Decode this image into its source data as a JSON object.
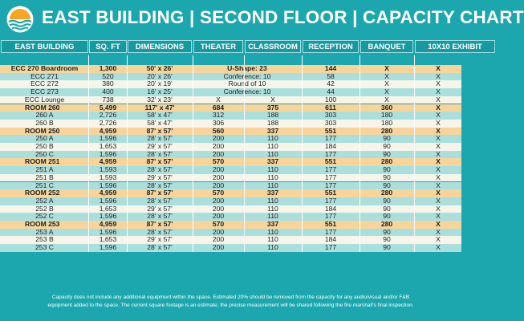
{
  "header": {
    "title": "EAST BUILDING | SECOND FLOOR | CAPACITY CHART"
  },
  "colors": {
    "teal": "#1ba7ad",
    "header_cell": "#1899a0",
    "row_teal": "#a9dfdc",
    "row_white": "#f7f5ea",
    "row_orange": "#f8d49b"
  },
  "table": {
    "columns": [
      "EAST BUILDING",
      "SQ. FT",
      "DIMENSIONS",
      "THEATER",
      "CLASSROOM",
      "RECEPTION",
      "BANQUET",
      "10X10 EXHIBIT"
    ],
    "rows": [
      {
        "style": "orange",
        "bold": true,
        "cells": [
          "ECC 270 Boardroom",
          "1,300",
          "50' x 26'",
          "U-Shape: 23",
          "",
          "144",
          "X",
          "X"
        ],
        "merge": true
      },
      {
        "style": "teal",
        "bold": false,
        "cells": [
          "ECC 271",
          "520",
          "20' x 26'",
          "Conference: 10",
          "",
          "58",
          "X",
          "X"
        ],
        "merge": true
      },
      {
        "style": "white",
        "bold": false,
        "cells": [
          "ECC 272",
          "380",
          "20' x 19'",
          "Round of 10",
          "",
          "42",
          "X",
          "X"
        ],
        "merge": true
      },
      {
        "style": "teal",
        "bold": false,
        "cells": [
          "ECC 273",
          "400",
          "16' x 25'",
          "Conference: 10",
          "",
          "44",
          "X",
          "X"
        ],
        "merge": true
      },
      {
        "style": "white",
        "bold": false,
        "cells": [
          "ECC Lounge",
          "738",
          "32' x 23'",
          "X",
          "X",
          "100",
          "X",
          "X"
        ]
      },
      {
        "style": "orange",
        "bold": true,
        "cells": [
          "ROOM 260",
          "5,499",
          "117' x 47'",
          "684",
          "375",
          "611",
          "360",
          "X"
        ]
      },
      {
        "style": "teal",
        "bold": false,
        "cells": [
          "260 A",
          "2,726",
          "58' x 47'",
          "312",
          "188",
          "303",
          "180",
          "X"
        ]
      },
      {
        "style": "white",
        "bold": false,
        "cells": [
          "260 B",
          "2,726",
          "58' x 47'",
          "306",
          "188",
          "303",
          "180",
          "X"
        ]
      },
      {
        "style": "orange",
        "bold": true,
        "cells": [
          "ROOM 250",
          "4,959",
          "87' x 57'",
          "560",
          "337",
          "551",
          "280",
          "X"
        ]
      },
      {
        "style": "teal",
        "bold": false,
        "cells": [
          "250 A",
          "1,596",
          "28' x 57'",
          "200",
          "110",
          "177",
          "90",
          "X"
        ]
      },
      {
        "style": "white",
        "bold": false,
        "cells": [
          "250 B",
          "1,653",
          "29' x 57'",
          "200",
          "110",
          "184",
          "90",
          "X"
        ]
      },
      {
        "style": "teal",
        "bold": false,
        "cells": [
          "250 C",
          "1,596",
          "28' x 57'",
          "200",
          "110",
          "177",
          "90",
          "X"
        ]
      },
      {
        "style": "orange",
        "bold": true,
        "cells": [
          "ROOM 251",
          "4,959",
          "87' x 57'",
          "570",
          "337",
          "551",
          "280",
          "X"
        ]
      },
      {
        "style": "teal",
        "bold": false,
        "cells": [
          "251 A",
          "1,593",
          "28' x 57'",
          "200",
          "110",
          "177",
          "90",
          "X"
        ]
      },
      {
        "style": "white",
        "bold": false,
        "cells": [
          "251 B",
          "1,593",
          "29' x 57'",
          "200",
          "110",
          "177",
          "90",
          "X"
        ]
      },
      {
        "style": "teal",
        "bold": false,
        "cells": [
          "251 C",
          "1,596",
          "28' x 57'",
          "200",
          "110",
          "177",
          "90",
          "X"
        ]
      },
      {
        "style": "orange",
        "bold": true,
        "cells": [
          "ROOM 252",
          "4,959",
          "87' x 57'",
          "570",
          "337",
          "551",
          "280",
          "X"
        ]
      },
      {
        "style": "teal",
        "bold": false,
        "cells": [
          "252 A",
          "1,596",
          "28' x 57'",
          "200",
          "110",
          "177",
          "90",
          "X"
        ]
      },
      {
        "style": "white",
        "bold": false,
        "cells": [
          "252 B",
          "1,653",
          "29' x 57'",
          "200",
          "110",
          "184",
          "90",
          "X"
        ]
      },
      {
        "style": "teal",
        "bold": false,
        "cells": [
          "252 C",
          "1,596",
          "28' x 57'",
          "200",
          "110",
          "177",
          "90",
          "X"
        ]
      },
      {
        "style": "orange",
        "bold": true,
        "cells": [
          "ROOM 253",
          "4,959",
          "87' x 57'",
          "570",
          "337",
          "551",
          "280",
          "X"
        ]
      },
      {
        "style": "teal",
        "bold": false,
        "cells": [
          "253 A",
          "1,596",
          "28' x 57'",
          "200",
          "110",
          "177",
          "90",
          "X"
        ]
      },
      {
        "style": "white",
        "bold": false,
        "cells": [
          "253 B",
          "1,653",
          "29' x 57'",
          "200",
          "110",
          "184",
          "90",
          "X"
        ]
      },
      {
        "style": "teal",
        "bold": false,
        "cells": [
          "253 C",
          "1,596",
          "28' x 57'",
          "200",
          "110",
          "177",
          "90",
          "X"
        ]
      }
    ]
  },
  "footer": {
    "line1": "Capacity does not include any additional equipment within the space. Estimated 20% should be removed from the capacity for any audio/visual and/or F&B",
    "line2": "equipment added to the space. The current square footage is an estimate; the precise measurement will be shared following the fire marshall's final inspection."
  }
}
